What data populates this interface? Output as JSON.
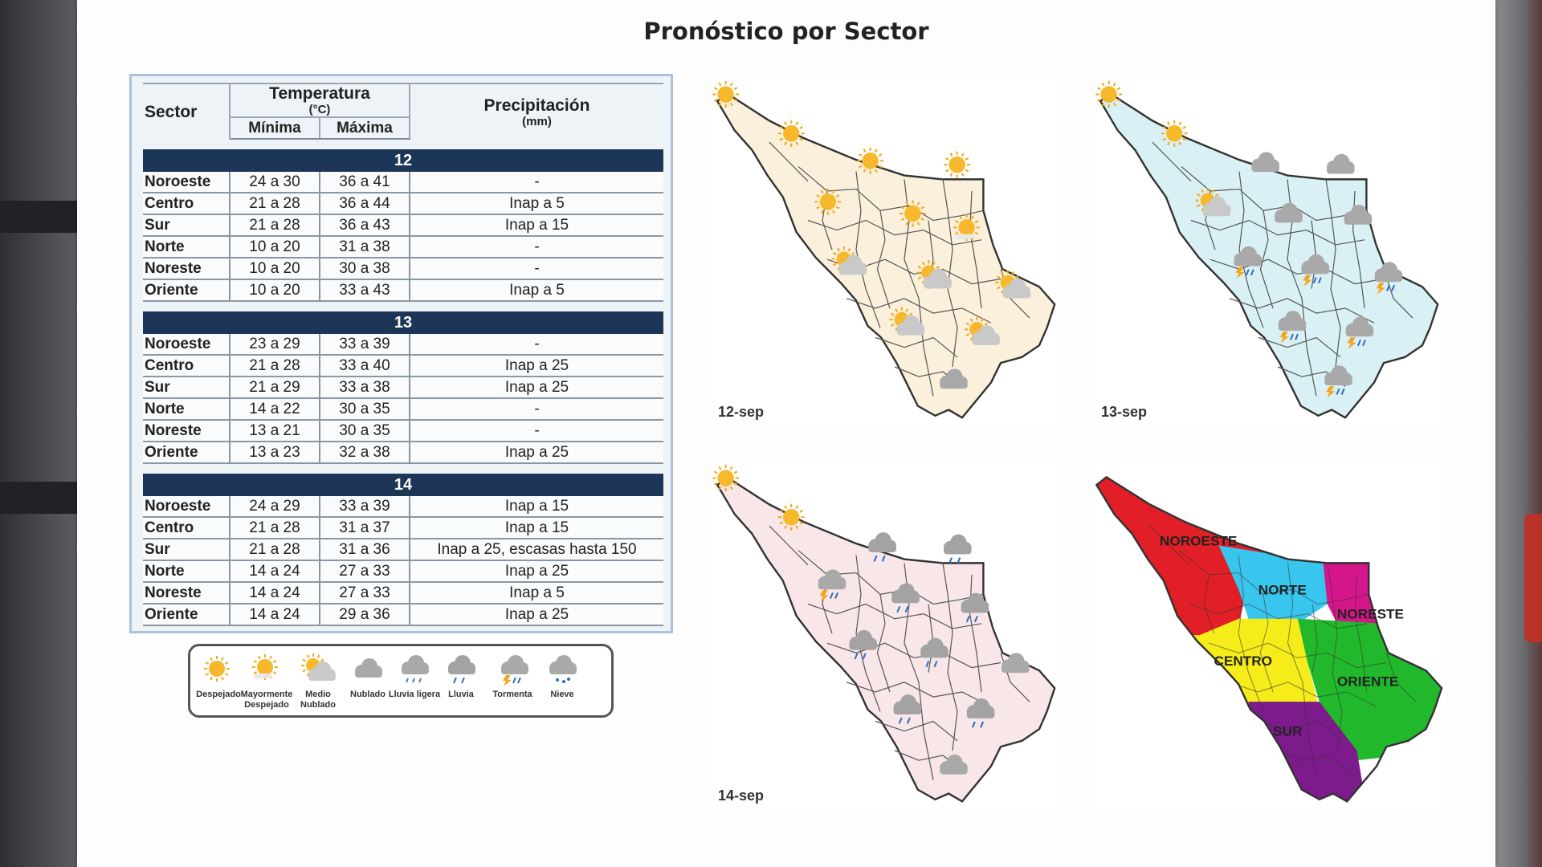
{
  "title": "Pronóstico por Sector",
  "table": {
    "header_sector": "Sector",
    "header_temp": "Temperatura",
    "header_temp_unit": "(°C)",
    "header_min": "Mínima",
    "header_max": "Máxima",
    "header_prec": "Precipitación",
    "header_prec_unit": "(mm)",
    "days": [
      {
        "label": "12",
        "rows": [
          {
            "sector": "Noroeste",
            "min": "24 a 30",
            "max": "36 a 41",
            "prec": "-"
          },
          {
            "sector": "Centro",
            "min": "21 a 28",
            "max": "36 a 44",
            "prec": "Inap a 5"
          },
          {
            "sector": "Sur",
            "min": "21 a 28",
            "max": "36 a 43",
            "prec": "Inap a 15"
          },
          {
            "sector": "Norte",
            "min": "10 a 20",
            "max": "31 a 38",
            "prec": "-"
          },
          {
            "sector": "Noreste",
            "min": "10 a 20",
            "max": "30 a 38",
            "prec": "-"
          },
          {
            "sector": "Oriente",
            "min": "10 a 20",
            "max": "33 a 43",
            "prec": "Inap a 5"
          }
        ]
      },
      {
        "label": "13",
        "rows": [
          {
            "sector": "Noroeste",
            "min": "23 a 29",
            "max": "33 a 39",
            "prec": "-"
          },
          {
            "sector": "Centro",
            "min": "21 a 28",
            "max": "33 a 40",
            "prec": "Inap a 25"
          },
          {
            "sector": "Sur",
            "min": "21 a 29",
            "max": "33 a 38",
            "prec": "Inap a 25"
          },
          {
            "sector": "Norte",
            "min": "14 a 22",
            "max": "30 a 35",
            "prec": "-"
          },
          {
            "sector": "Noreste",
            "min": "13 a 21",
            "max": "30 a 35",
            "prec": "-"
          },
          {
            "sector": "Oriente",
            "min": "13 a 23",
            "max": "32 a 38",
            "prec": "Inap a 25"
          }
        ]
      },
      {
        "label": "14",
        "rows": [
          {
            "sector": "Noroeste",
            "min": "24 a 29",
            "max": "33 a 39",
            "prec": "Inap a 15"
          },
          {
            "sector": "Centro",
            "min": "21 a 28",
            "max": "31 a 37",
            "prec": "Inap a 15"
          },
          {
            "sector": "Sur",
            "min": "21 a 28",
            "max": "31 a 36",
            "prec": "Inap a 25, escasas hasta 150"
          },
          {
            "sector": "Norte",
            "min": "14 a 24",
            "max": "27 a 33",
            "prec": "Inap a 25"
          },
          {
            "sector": "Noreste",
            "min": "14 a 24",
            "max": "27 a 33",
            "prec": "Inap a 5"
          },
          {
            "sector": "Oriente",
            "min": "14 a 24",
            "max": "29 a 36",
            "prec": "Inap a 25"
          }
        ]
      }
    ]
  },
  "legend": [
    {
      "label": "Despejado",
      "icon": "sun-icon"
    },
    {
      "label": "Mayormente Despejado",
      "icon": "mostly-clear-icon"
    },
    {
      "label": "Medio Nublado",
      "icon": "partly-cloudy-icon"
    },
    {
      "label": "Nublado",
      "icon": "cloud-icon"
    },
    {
      "label": "Lluvia ligera",
      "icon": "light-rain-icon"
    },
    {
      "label": "Lluvia",
      "icon": "rain-icon"
    },
    {
      "label": "Tormenta",
      "icon": "storm-icon"
    },
    {
      "label": "Nieve",
      "icon": "snow-icon"
    }
  ],
  "maps": [
    {
      "date": "12-sep",
      "fill": "#fbf0dc"
    },
    {
      "date": "13-sep",
      "fill": "#d9f1f4"
    },
    {
      "date": "14-sep",
      "fill": "#f8e6e9"
    }
  ],
  "sector_map": {
    "regions": [
      {
        "label": "NOROESTE",
        "color": "#e21f26"
      },
      {
        "label": "NORTE",
        "color": "#38c6ee"
      },
      {
        "label": "NORESTE",
        "color": "#d4168a"
      },
      {
        "label": "CENTRO",
        "color": "#f5ec1a"
      },
      {
        "label": "ORIENTE",
        "color": "#22b82b"
      },
      {
        "label": "SUR",
        "color": "#7d1a8c"
      }
    ]
  }
}
